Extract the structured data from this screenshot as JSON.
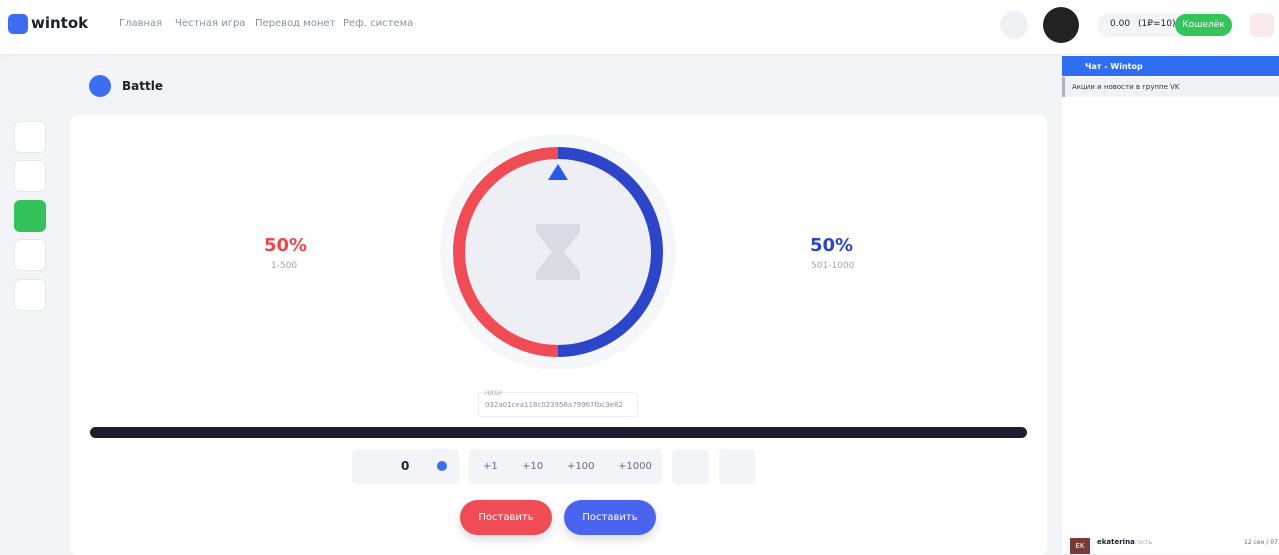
{
  "header": {
    "logo": "wintok",
    "nav": [
      "Главная",
      "Честная игра",
      "Перевод монет",
      "Реф. система"
    ],
    "balance": "0.00",
    "rate": "(1₽=10)",
    "wallet": "Кошелёк"
  },
  "game": {
    "title": "Battle",
    "left": {
      "percent": "50%",
      "range": "1-500"
    },
    "right": {
      "percent": "50%",
      "range": "501-1000"
    },
    "hash_label": "HASH",
    "hash": "032a01cea118c023958a79967fbc3e82",
    "bet": "0",
    "increments": [
      "+1",
      "+10",
      "+100",
      "+1000"
    ],
    "buttons": [
      "Поставить",
      "Поставить"
    ]
  },
  "chat": {
    "title": "Чат - Wintop",
    "notice": "Акции и новости в группе VK",
    "message": {
      "avatar": "EK",
      "user": "ekaterina",
      "role": "гость",
      "time": "12 сен / 07"
    }
  }
}
